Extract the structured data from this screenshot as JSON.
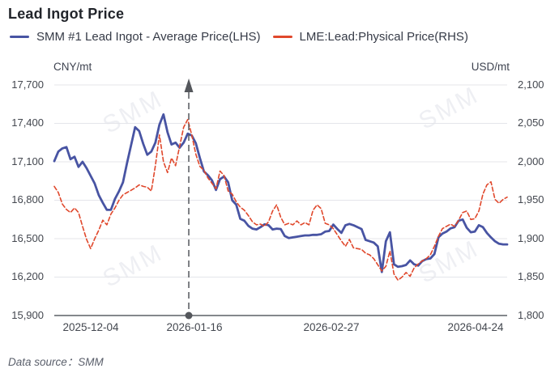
{
  "title": "Lead Ingot Price",
  "watermark": "SMM",
  "footer": "Data source：SMM",
  "legend": {
    "items": [
      {
        "label": "SMM #1 Lead Ingot - Average Price(LHS)",
        "color": "#4854a3"
      },
      {
        "label": "LME:Lead:Physical Price(RHS)",
        "color": "#e0482c"
      }
    ]
  },
  "chart_data": {
    "type": "line",
    "title": "Lead Ingot Price",
    "grid": true,
    "legend_position": "top",
    "colors": {
      "lhs_series": "#4854a3",
      "rhs_series": "#e0482c",
      "grid": "#e4e5ea",
      "axis": "#5c6066",
      "marker": "#54575c"
    },
    "lhs_axis": {
      "unit": "CNY/mt",
      "min": 15900,
      "max": 17700,
      "tick_step": 300,
      "tick_labels": [
        "17,700",
        "17,400",
        "17,100",
        "16,800",
        "16,500",
        "16,200",
        "15,900"
      ]
    },
    "rhs_axis": {
      "unit": "USD/mt",
      "min": 1800,
      "max": 2100,
      "tick_step": 50,
      "tick_labels": [
        "2,100",
        "2,050",
        "2,000",
        "1,950",
        "1,900",
        "1,850",
        "1,800"
      ]
    },
    "x_axis": {
      "tick_labels": [
        "2025-12-04",
        "2026-01-16",
        "2026-02-27",
        "2026-04-24"
      ],
      "tick_positions_pct": [
        8.05,
        30.95,
        61.18,
        93.02
      ]
    },
    "marker_line": {
      "date": "2026-01-16",
      "x_pct": 29.7,
      "style": "dashed-arrow-top-dot-bottom"
    },
    "series": [
      {
        "name": "SMM #1 Lead Ingot - Average Price(LHS)",
        "axis": "lhs",
        "style": "solid",
        "color": "#4854a3",
        "values": [
          17105,
          17180,
          17205,
          17215,
          17120,
          17140,
          17060,
          17100,
          17050,
          16990,
          16930,
          16840,
          16780,
          16725,
          16725,
          16810,
          16870,
          16940,
          17090,
          17230,
          17370,
          17340,
          17240,
          17155,
          17180,
          17250,
          17390,
          17470,
          17330,
          17235,
          17250,
          17210,
          17250,
          17320,
          17305,
          17245,
          17130,
          17025,
          16995,
          16955,
          16880,
          16965,
          16985,
          16940,
          16800,
          16765,
          16655,
          16640,
          16600,
          16578,
          16572,
          16590,
          16612,
          16605,
          16572,
          16578,
          16575,
          16520,
          16505,
          16510,
          16515,
          16520,
          16525,
          16525,
          16530,
          16530,
          16535,
          16555,
          16560,
          16610,
          16575,
          16545,
          16605,
          16615,
          16605,
          16590,
          16575,
          16490,
          16480,
          16470,
          16440,
          16240,
          16480,
          16550,
          16300,
          16280,
          16285,
          16295,
          16330,
          16300,
          16290,
          16325,
          16340,
          16345,
          16380,
          16510,
          16540,
          16555,
          16580,
          16590,
          16640,
          16650,
          16585,
          16550,
          16555,
          16605,
          16590,
          16545,
          16510,
          16480,
          16460,
          16455,
          16455
        ]
      },
      {
        "name": "LME:Lead:Physical Price(RHS)",
        "axis": "rhs",
        "style": "dashed",
        "color": "#e0482c",
        "values": [
          1968,
          1960,
          1945,
          1938,
          1934,
          1940,
          1934,
          1916,
          1899,
          1887,
          1900,
          1911,
          1924,
          1918,
          1932,
          1940,
          1950,
          1957,
          1960,
          1963,
          1966,
          1970,
          1968,
          1967,
          1962,
          1995,
          2035,
          2000,
          1986,
          2005,
          1995,
          2020,
          2045,
          2055,
          2035,
          2010,
          1994,
          1989,
          1979,
          1972,
          1965,
          1988,
          1982,
          1962,
          1958,
          1948,
          1941,
          1937,
          1930,
          1922,
          1918,
          1919,
          1916,
          1922,
          1936,
          1944,
          1928,
          1918,
          1920,
          1918,
          1923,
          1918,
          1921,
          1918,
          1937,
          1944,
          1939,
          1920,
          1918,
          1913,
          1905,
          1897,
          1890,
          1899,
          1888,
          1887,
          1886,
          1881,
          1879,
          1874,
          1866,
          1858,
          1864,
          1884,
          1854,
          1846,
          1850,
          1856,
          1851,
          1862,
          1867,
          1871,
          1874,
          1879,
          1890,
          1903,
          1913,
          1916,
          1919,
          1916,
          1924,
          1934,
          1936,
          1925,
          1926,
          1936,
          1958,
          1970,
          1974,
          1951,
          1946,
          1951,
          1954
        ]
      }
    ]
  }
}
